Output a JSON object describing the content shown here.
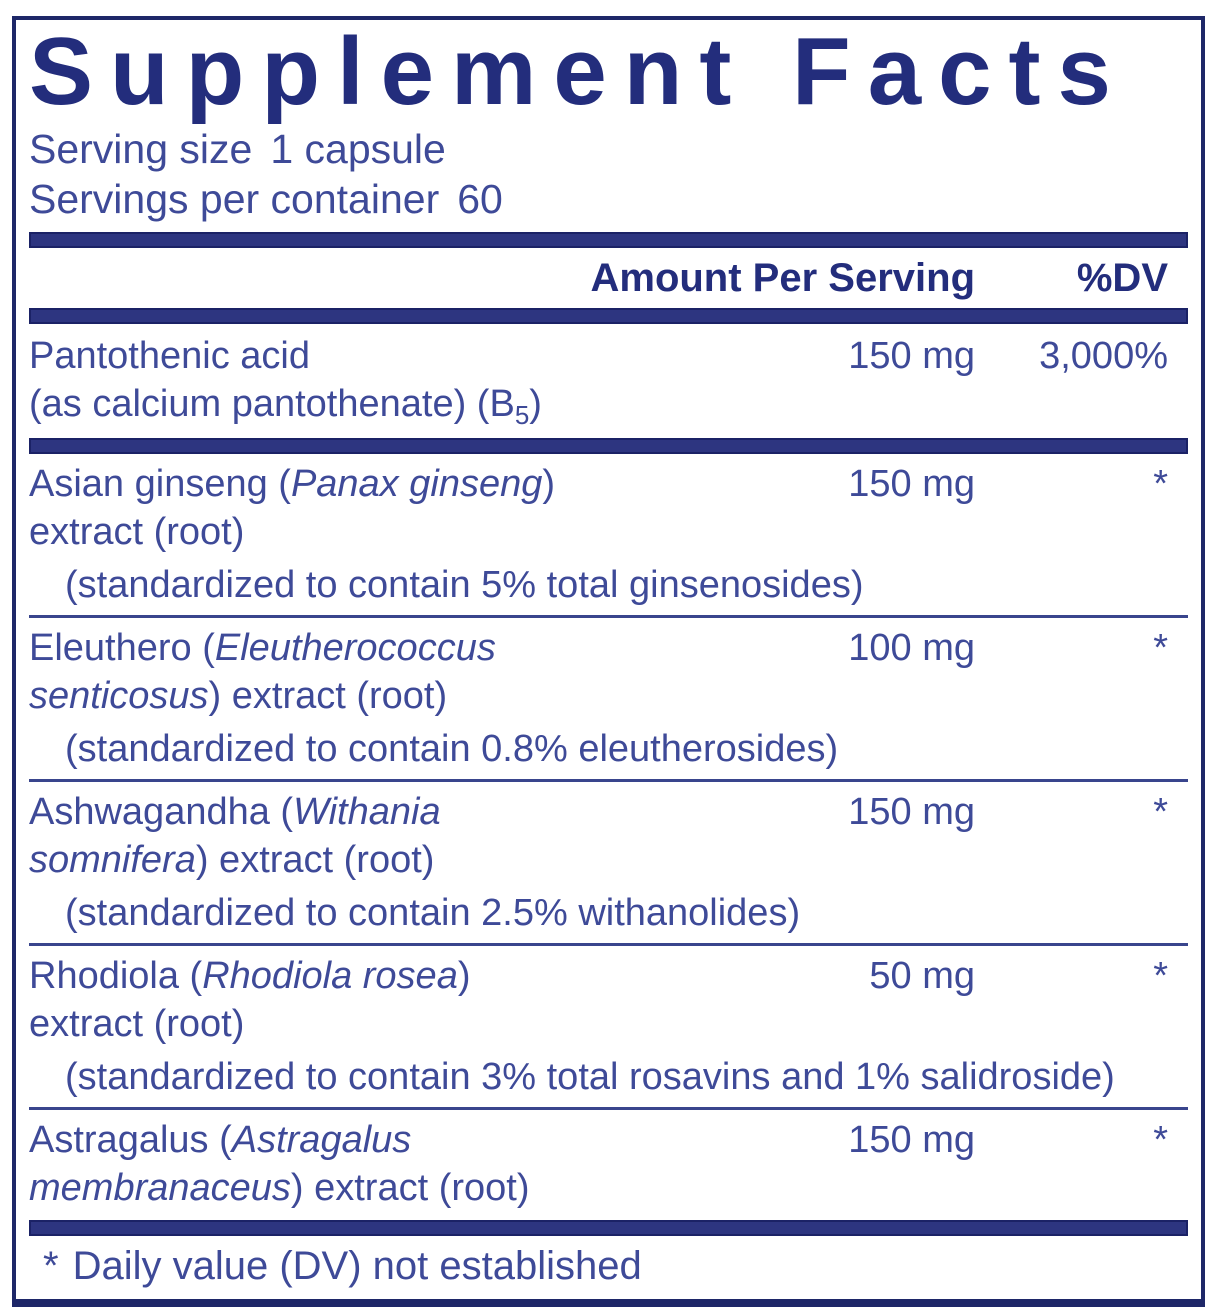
{
  "title": "Supplement Facts",
  "serving": {
    "size_label": "Serving size",
    "size_value": "1 capsule",
    "container_label": "Servings per container",
    "container_value": "60"
  },
  "header": {
    "amount_label": "Amount Per Serving",
    "dv_label": "%DV"
  },
  "rows": [
    {
      "line1": "Pantothenic acid",
      "line2_pre": "(as calcium pantothenate) (B",
      "line2_sub": "5",
      "line2_post": ")",
      "amount": "150 mg",
      "dv": "3,000%"
    },
    {
      "line1_pre": "Asian ginseng (",
      "line1_italic": "Panax ginseng",
      "line1_post": ")",
      "line2": "extract (root)",
      "line3": "(standardized to contain 5% total ginsenosides)",
      "amount": "150 mg",
      "dv": "*"
    },
    {
      "line1_pre": "Eleuthero (",
      "line1_italic": "Eleutherococcus",
      "line2_italic": "senticosus",
      "line2_post": ") extract (root)",
      "line3": "(standardized to contain 0.8% eleutherosides)",
      "amount": "100 mg",
      "dv": "*"
    },
    {
      "line1_pre": "Ashwagandha (",
      "line1_italic": "Withania",
      "line2_italic": "somnifera",
      "line2_post": ") extract (root)",
      "line3": "(standardized to contain 2.5% withanolides)",
      "amount": "150 mg",
      "dv": "*"
    },
    {
      "line1_pre": "Rhodiola (",
      "line1_italic": "Rhodiola rosea",
      "line1_post": ")",
      "line2": "extract (root)",
      "line3": "(standardized to contain 3% total rosavins and 1% salidroside)",
      "amount": "50 mg",
      "dv": "*"
    },
    {
      "line1_pre": "Astragalus (",
      "line1_italic": "Astragalus",
      "line2_italic": "membranaceus",
      "line2_post": ") extract (root)",
      "amount": "150 mg",
      "dv": "*"
    }
  ],
  "footnote": {
    "asterisk": "*",
    "text": "Daily value (DV) not established"
  },
  "colors": {
    "title": "#232d7c",
    "body": "#3e4a98",
    "bar": "#2d3580",
    "bar_border": "#1b2266",
    "line": "#39458d",
    "border": "#1e2768",
    "background": "#ffffff"
  }
}
